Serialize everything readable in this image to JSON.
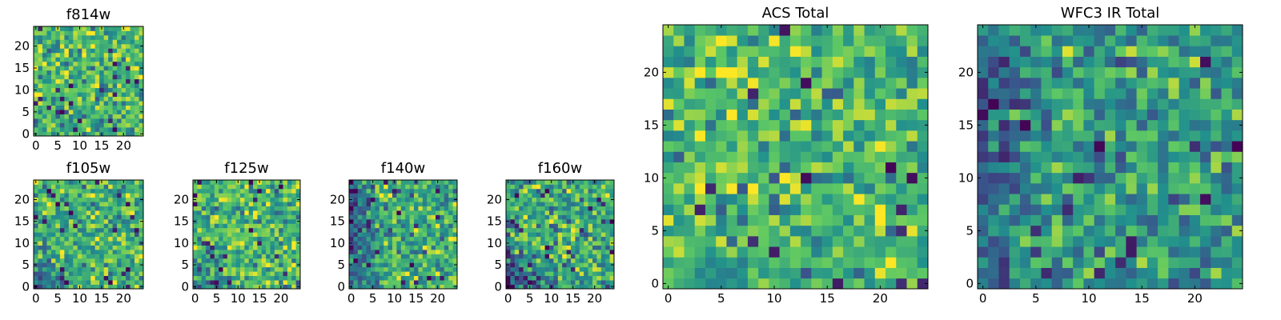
{
  "figure": {
    "colormap": "viridis",
    "colormap_stops": [
      "#440154",
      "#3b528b",
      "#21908d",
      "#5dc863",
      "#fde725"
    ],
    "axes_color": "#000000",
    "background": "#ffffff"
  },
  "chart_data": [
    {
      "type": "heatmap",
      "title": "f814w",
      "grid_size": [
        25,
        25
      ],
      "xlim": [
        0,
        24
      ],
      "ylim": [
        0,
        24
      ],
      "xticks": [
        "0",
        "5",
        "10",
        "15",
        "20"
      ],
      "yticks": [
        "0",
        "5",
        "10",
        "15",
        "20"
      ],
      "grid": false,
      "value_range": [
        0,
        1
      ],
      "mean_level": 0.68,
      "spread": 0.2,
      "low_edge": "bottom",
      "edge_depth": 0.05,
      "seed": 11
    },
    {
      "type": "heatmap",
      "title": "f105w",
      "grid_size": [
        25,
        25
      ],
      "xlim": [
        0,
        24
      ],
      "ylim": [
        0,
        24
      ],
      "xticks": [
        "0",
        "5",
        "10",
        "15",
        "20"
      ],
      "yticks": [
        "0",
        "5",
        "10",
        "15",
        "20"
      ],
      "grid": false,
      "value_range": [
        0,
        1
      ],
      "mean_level": 0.66,
      "spread": 0.2,
      "low_edge": "bottom-left",
      "edge_depth": 0.35,
      "seed": 23
    },
    {
      "type": "heatmap",
      "title": "f125w",
      "grid_size": [
        25,
        25
      ],
      "xlim": [
        0,
        24
      ],
      "ylim": [
        0,
        24
      ],
      "xticks": [
        "0",
        "5",
        "10",
        "15",
        "20"
      ],
      "yticks": [
        "0",
        "5",
        "10",
        "15",
        "20"
      ],
      "grid": false,
      "value_range": [
        0,
        1
      ],
      "mean_level": 0.68,
      "spread": 0.22,
      "low_edge": "bottom-left",
      "edge_depth": 0.3,
      "seed": 37
    },
    {
      "type": "heatmap",
      "title": "f140w",
      "grid_size": [
        25,
        25
      ],
      "xlim": [
        0,
        24
      ],
      "ylim": [
        0,
        24
      ],
      "xticks": [
        "0",
        "5",
        "10",
        "15",
        "20"
      ],
      "yticks": [
        "0",
        "5",
        "10",
        "15",
        "20"
      ],
      "grid": false,
      "value_range": [
        0,
        1
      ],
      "mean_level": 0.64,
      "spread": 0.22,
      "low_edge": "left",
      "edge_depth": 0.4,
      "seed": 41
    },
    {
      "type": "heatmap",
      "title": "f160w",
      "grid_size": [
        25,
        25
      ],
      "xlim": [
        0,
        24
      ],
      "ylim": [
        0,
        24
      ],
      "xticks": [
        "0",
        "5",
        "10",
        "15",
        "20"
      ],
      "yticks": [
        "0",
        "5",
        "10",
        "15",
        "20"
      ],
      "grid": false,
      "value_range": [
        0,
        1
      ],
      "mean_level": 0.62,
      "spread": 0.22,
      "low_edge": "bottom-left",
      "edge_depth": 0.45,
      "seed": 53
    },
    {
      "type": "heatmap",
      "title": "ACS Total",
      "grid_size": [
        25,
        25
      ],
      "xlim": [
        0,
        24
      ],
      "ylim": [
        0,
        24
      ],
      "xticks": [
        "0",
        "5",
        "10",
        "15",
        "20"
      ],
      "yticks": [
        "0",
        "5",
        "10",
        "15",
        "20"
      ],
      "grid": false,
      "value_range": [
        0,
        1
      ],
      "mean_level": 0.68,
      "spread": 0.2,
      "low_edge": "bottom",
      "edge_depth": 0.08,
      "seed": 67
    },
    {
      "type": "heatmap",
      "title": "WFC3 IR Total",
      "grid_size": [
        25,
        25
      ],
      "xlim": [
        0,
        24
      ],
      "ylim": [
        0,
        24
      ],
      "xticks": [
        "0",
        "5",
        "10",
        "15",
        "20"
      ],
      "yticks": [
        "0",
        "5",
        "10",
        "15",
        "20"
      ],
      "grid": false,
      "value_range": [
        0,
        1
      ],
      "mean_level": 0.55,
      "spread": 0.2,
      "low_edge": "left",
      "edge_depth": 0.2,
      "seed": 79
    }
  ]
}
